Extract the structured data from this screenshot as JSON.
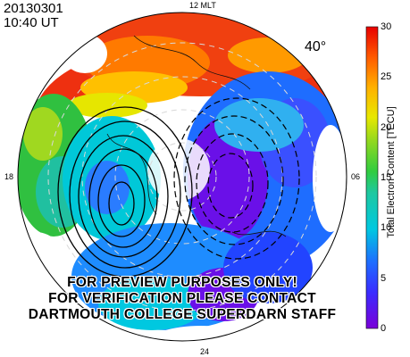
{
  "header": {
    "date": "20130301",
    "time": "10:40 UT"
  },
  "map": {
    "mlt_labels": {
      "top": "12 MLT",
      "bottom": "24",
      "left": "18",
      "right": "06"
    },
    "latitude_label": "40°"
  },
  "colorbar": {
    "title": "Total Electron Content [TECU]",
    "ticks": [
      "0",
      "5",
      "10",
      "15",
      "20",
      "25",
      "30"
    ],
    "range": [
      0,
      30
    ],
    "colors": [
      "#7a00d8",
      "#2244ff",
      "#00d8e8",
      "#22cc33",
      "#e6e600",
      "#ff9900",
      "#ee0000"
    ]
  },
  "watermark": {
    "line1": "FOR PREVIEW PURPOSES ONLY!",
    "line2": "FOR VERIFICATION PLEASE CONTACT",
    "line3": "DARTMOUTH COLLEGE SUPERDARN STAFF"
  }
}
